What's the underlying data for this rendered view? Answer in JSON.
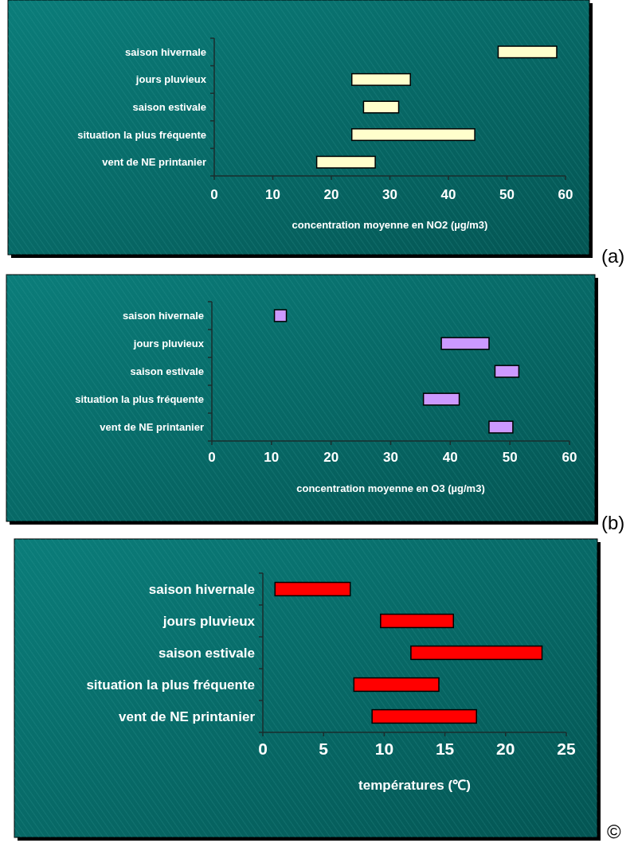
{
  "chart_data": [
    {
      "type": "bar",
      "orientation": "horizontal",
      "categories": [
        "saison hivernale",
        "jours pluvieux",
        "saison estivale",
        "situation la plus fréquente",
        "vent de NE printanier"
      ],
      "base": [
        48.5,
        23.5,
        25.5,
        23.5,
        17.5
      ],
      "values": [
        10,
        10,
        6,
        21,
        10
      ],
      "color": "#ffffcc",
      "xlim": [
        0,
        60
      ],
      "xticks": [
        0,
        10,
        20,
        30,
        40,
        50,
        60
      ],
      "xlabel": "concentration moyenne en NO2 (µg/m3)",
      "annotations": [
        "(a)"
      ]
    },
    {
      "type": "bar",
      "orientation": "horizontal",
      "categories": [
        "saison hivernale",
        "jours pluvieux",
        "saison estivale",
        "situation la plus fréquente",
        "vent de NE printanier"
      ],
      "base": [
        10.5,
        38.5,
        47.5,
        35.5,
        46.5
      ],
      "values": [
        2,
        8,
        4,
        6,
        4
      ],
      "color": "#cc99ff",
      "xlim": [
        0,
        60
      ],
      "xticks": [
        0,
        10,
        20,
        30,
        40,
        50,
        60
      ],
      "xlabel": "concentration moyenne en O3 (µg/m3)",
      "annotations": [
        "(b)"
      ]
    },
    {
      "type": "bar",
      "orientation": "horizontal",
      "categories": [
        "saison hivernale",
        "jours pluvieux",
        "saison estivale",
        "situation la plus fréquente",
        "vent de NE printanier"
      ],
      "base": [
        1,
        9.7,
        12.2,
        7.5,
        9
      ],
      "values": [
        6.2,
        6,
        10.8,
        7,
        8.6
      ],
      "color": "#ff0000",
      "xlim": [
        0,
        25
      ],
      "xticks": [
        0,
        5,
        10,
        15,
        20,
        25
      ],
      "xlabel": "températures (℃)",
      "annotations": [
        "©"
      ]
    }
  ]
}
